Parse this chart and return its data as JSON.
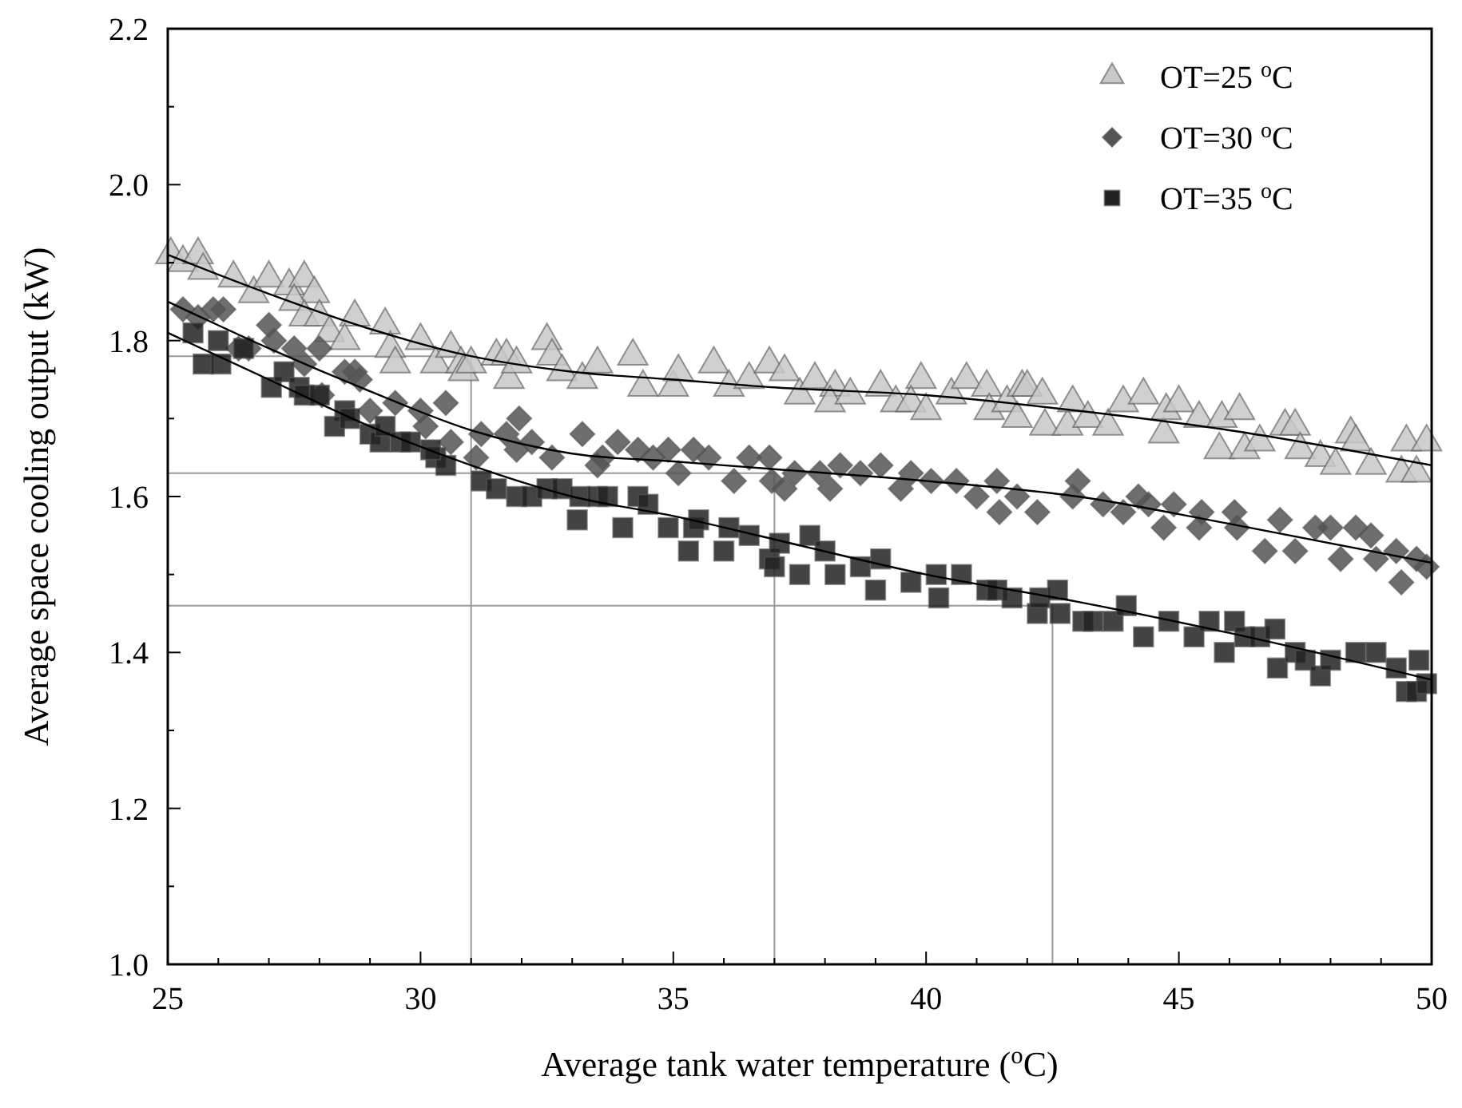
{
  "chart_data": {
    "type": "scatter",
    "xlabel": "Average tank water temperature ($^{o}$C)",
    "ylabel": "Average space cooling output (kW)",
    "xlim": [
      25,
      50
    ],
    "xticks": [
      25,
      30,
      35,
      40,
      45,
      50
    ],
    "ylim": [
      1.0,
      2.2
    ],
    "yticks": [
      {
        "value": 1.0,
        "label": "1.0"
      },
      {
        "value": 1.2,
        "label": "1.2"
      },
      {
        "value": 1.4,
        "label": "1.4"
      },
      {
        "value": 1.6,
        "label": "1.6"
      },
      {
        "value": 1.8,
        "label": "1.8"
      },
      {
        "value": 2.0,
        "label": "2.0"
      },
      {
        "value": 2.2,
        "label": "2.2"
      }
    ],
    "grid": false,
    "legend": "top right",
    "series": [
      {
        "name": "OT=25 $^{o}$C",
        "marker": "triangle",
        "color": "#c8c8c8",
        "x": [
          25.06,
          25.3,
          25.6,
          25.7,
          26.3,
          26.7,
          27.0,
          27.4,
          27.7,
          27.9,
          27.5,
          27.7,
          28.0,
          28.2,
          28.7,
          28.5,
          29.3,
          29.4,
          29.5,
          30.0,
          30.3,
          30.6,
          30.8,
          30.85,
          31.0,
          31.5,
          31.7,
          31.75,
          31.9,
          32.5,
          32.6,
          32.8,
          33.2,
          33.5,
          34.2,
          34.4,
          35.0,
          35.1,
          35.8,
          36.1,
          36.5,
          36.9,
          37.2,
          37.5,
          37.8,
          38.2,
          38.1,
          38.5,
          39.1,
          39.4,
          39.9,
          39.7,
          40.0,
          40.5,
          40.8,
          41.2,
          41.25,
          41.6,
          41.9,
          41.8,
          42.0,
          42.3,
          42.35,
          42.8,
          42.9,
          43.2,
          43.6,
          43.9,
          44.3,
          44.7,
          44.75,
          45.0,
          45.4,
          45.8,
          45.85,
          46.2,
          46.3,
          46.6,
          47.1,
          47.3,
          47.4,
          47.8,
          48.1,
          48.4,
          48.5,
          48.8,
          49.5,
          49.4,
          49.7,
          49.9
        ],
        "values": [
          1.91,
          1.9,
          1.91,
          1.89,
          1.88,
          1.86,
          1.88,
          1.87,
          1.88,
          1.86,
          1.85,
          1.83,
          1.83,
          1.81,
          1.83,
          1.8,
          1.82,
          1.79,
          1.77,
          1.8,
          1.77,
          1.79,
          1.77,
          1.76,
          1.77,
          1.78,
          1.78,
          1.75,
          1.77,
          1.8,
          1.78,
          1.76,
          1.75,
          1.77,
          1.78,
          1.74,
          1.74,
          1.76,
          1.77,
          1.74,
          1.75,
          1.77,
          1.76,
          1.73,
          1.75,
          1.74,
          1.72,
          1.73,
          1.74,
          1.72,
          1.75,
          1.72,
          1.71,
          1.73,
          1.75,
          1.74,
          1.71,
          1.72,
          1.74,
          1.7,
          1.74,
          1.73,
          1.69,
          1.69,
          1.72,
          1.7,
          1.69,
          1.72,
          1.73,
          1.68,
          1.71,
          1.72,
          1.7,
          1.66,
          1.7,
          1.71,
          1.66,
          1.67,
          1.69,
          1.69,
          1.66,
          1.65,
          1.64,
          1.68,
          1.67,
          1.64,
          1.67,
          1.63,
          1.63,
          1.67
        ]
      },
      {
        "name": "OT=30 $^{o}$C",
        "marker": "diamond",
        "color": "#555555",
        "x": [
          25.3,
          25.6,
          25.9,
          26.1,
          26.4,
          26.6,
          27.0,
          27.1,
          27.5,
          27.7,
          28.0,
          28.05,
          28.5,
          28.7,
          28.8,
          29.0,
          29.5,
          30.0,
          30.1,
          30.5,
          30.6,
          31.1,
          31.2,
          31.7,
          31.95,
          31.9,
          32.2,
          32.6,
          33.2,
          33.5,
          33.6,
          33.9,
          34.3,
          34.6,
          34.9,
          35.1,
          35.4,
          35.7,
          36.2,
          36.5,
          36.9,
          36.95,
          37.2,
          37.4,
          37.9,
          38.1,
          38.3,
          38.7,
          39.1,
          39.5,
          39.7,
          40.1,
          40.6,
          41.0,
          41.4,
          41.45,
          41.8,
          42.2,
          43.0,
          42.9,
          43.5,
          43.9,
          44.2,
          44.4,
          44.7,
          44.9,
          45.4,
          45.45,
          46.1,
          46.15,
          46.7,
          47.0,
          47.3,
          47.7,
          48.0,
          48.2,
          48.5,
          48.8,
          48.9,
          49.3,
          49.4,
          49.7,
          49.9
        ],
        "values": [
          1.84,
          1.83,
          1.84,
          1.84,
          1.79,
          1.79,
          1.82,
          1.8,
          1.79,
          1.77,
          1.79,
          1.73,
          1.76,
          1.76,
          1.75,
          1.71,
          1.72,
          1.71,
          1.69,
          1.72,
          1.67,
          1.65,
          1.68,
          1.68,
          1.7,
          1.66,
          1.67,
          1.65,
          1.68,
          1.64,
          1.65,
          1.67,
          1.66,
          1.65,
          1.66,
          1.63,
          1.66,
          1.65,
          1.62,
          1.65,
          1.65,
          1.62,
          1.61,
          1.63,
          1.63,
          1.61,
          1.64,
          1.63,
          1.64,
          1.61,
          1.63,
          1.62,
          1.62,
          1.6,
          1.62,
          1.58,
          1.6,
          1.58,
          1.62,
          1.6,
          1.59,
          1.58,
          1.6,
          1.59,
          1.56,
          1.59,
          1.56,
          1.58,
          1.58,
          1.56,
          1.53,
          1.57,
          1.53,
          1.56,
          1.56,
          1.52,
          1.56,
          1.55,
          1.52,
          1.53,
          1.49,
          1.52,
          1.51
        ]
      },
      {
        "name": "OT=35 $^{o}$C",
        "marker": "square",
        "color": "#222222",
        "x": [
          25.5,
          26.0,
          25.7,
          26.05,
          26.5,
          27.05,
          27.3,
          27.6,
          27.7,
          28.0,
          28.5,
          28.3,
          28.6,
          29.0,
          29.2,
          29.3,
          29.6,
          29.8,
          30.3,
          30.5,
          30.2,
          31.2,
          31.5,
          31.9,
          32.2,
          32.5,
          32.8,
          33.1,
          33.15,
          33.5,
          33.7,
          34.0,
          34.3,
          34.5,
          34.9,
          35.3,
          35.4,
          35.5,
          36.0,
          36.1,
          36.5,
          36.9,
          37.1,
          37.0,
          37.5,
          37.7,
          38.0,
          38.2,
          38.7,
          39.0,
          39.1,
          39.7,
          40.2,
          40.25,
          40.7,
          41.2,
          41.4,
          41.7,
          42.2,
          42.25,
          42.6,
          42.65,
          43.1,
          43.3,
          43.7,
          43.96,
          44.3,
          44.8,
          45.3,
          45.6,
          45.9,
          46.1,
          46.3,
          46.6,
          46.9,
          46.95,
          47.3,
          47.5,
          47.8,
          48.0,
          48.5,
          48.9,
          49.3,
          49.5,
          49.7,
          49.75,
          49.9
        ],
        "values": [
          1.81,
          1.8,
          1.77,
          1.77,
          1.79,
          1.74,
          1.76,
          1.74,
          1.73,
          1.73,
          1.71,
          1.69,
          1.7,
          1.68,
          1.67,
          1.69,
          1.67,
          1.67,
          1.65,
          1.64,
          1.66,
          1.62,
          1.61,
          1.6,
          1.6,
          1.61,
          1.61,
          1.57,
          1.6,
          1.6,
          1.6,
          1.56,
          1.6,
          1.59,
          1.56,
          1.53,
          1.56,
          1.57,
          1.53,
          1.56,
          1.55,
          1.52,
          1.54,
          1.51,
          1.5,
          1.55,
          1.53,
          1.5,
          1.51,
          1.48,
          1.52,
          1.49,
          1.5,
          1.47,
          1.5,
          1.48,
          1.48,
          1.47,
          1.45,
          1.47,
          1.48,
          1.45,
          1.44,
          1.44,
          1.44,
          1.46,
          1.42,
          1.44,
          1.42,
          1.44,
          1.4,
          1.44,
          1.42,
          1.42,
          1.43,
          1.38,
          1.4,
          1.39,
          1.37,
          1.39,
          1.4,
          1.4,
          1.38,
          1.35,
          1.35,
          1.39,
          1.36
        ]
      },
      {
        "type": "line",
        "marker": "none",
        "color": "#000000",
        "x": [
          25,
          27,
          29,
          31,
          33,
          35,
          37,
          40,
          43,
          46,
          50
        ],
        "values": [
          1.91,
          1.86,
          1.815,
          1.78,
          1.76,
          1.75,
          1.74,
          1.73,
          1.71,
          1.685,
          1.64
        ]
      },
      {
        "type": "line",
        "marker": "none",
        "color": "#000000",
        "x": [
          25,
          27,
          29,
          31,
          33,
          35,
          37,
          40,
          43,
          46,
          50
        ],
        "values": [
          1.85,
          1.79,
          1.735,
          1.685,
          1.655,
          1.645,
          1.635,
          1.62,
          1.6,
          1.565,
          1.515
        ]
      },
      {
        "type": "line",
        "marker": "none",
        "color": "#000000",
        "x": [
          25,
          27,
          29,
          31,
          33,
          35,
          37,
          40,
          43,
          46,
          50
        ],
        "values": [
          1.81,
          1.75,
          1.69,
          1.64,
          1.6,
          1.575,
          1.545,
          1.5,
          1.465,
          1.425,
          1.365
        ]
      }
    ],
    "ref_lines": [
      {
        "axis": "y",
        "value": 1.78,
        "color": "#999999"
      },
      {
        "axis": "y",
        "value": 1.63,
        "color": "#999999"
      },
      {
        "axis": "y",
        "value": 1.46,
        "color": "#999999"
      },
      {
        "axis": "x",
        "value": 31,
        "color": "#999999"
      },
      {
        "axis": "x",
        "value": 37,
        "color": "#999999"
      },
      {
        "axis": "x",
        "value": 42.5,
        "color": "#999999"
      }
    ]
  }
}
